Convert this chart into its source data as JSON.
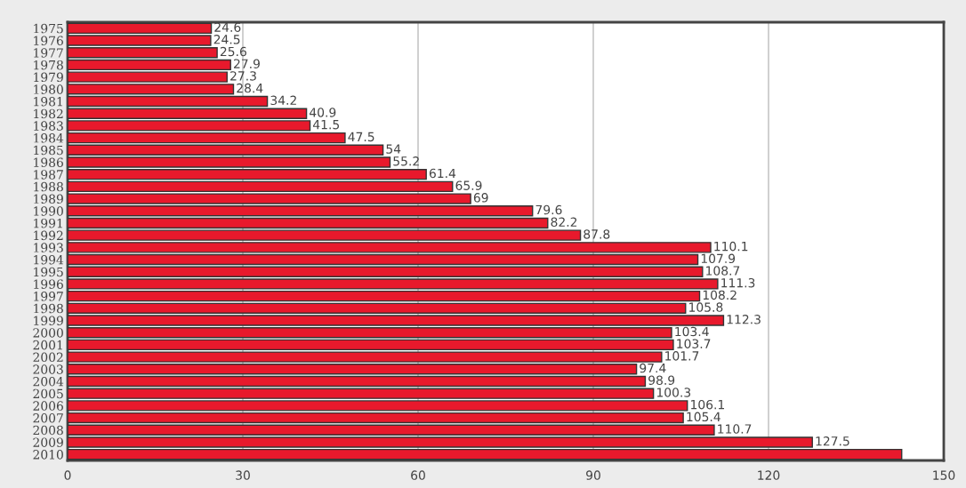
{
  "chart_data": {
    "type": "bar",
    "orientation": "horizontal",
    "categories": [
      "1975",
      "1976",
      "1977",
      "1978",
      "1979",
      "1980",
      "1981",
      "1982",
      "1983",
      "1984",
      "1985",
      "1986",
      "1987",
      "1988",
      "1989",
      "1990",
      "1991",
      "1992",
      "1993",
      "1994",
      "1995",
      "1996",
      "1997",
      "1998",
      "1999",
      "2000",
      "2001",
      "2002",
      "2003",
      "2004",
      "2005",
      "2006",
      "2007",
      "2008",
      "2009",
      "2010"
    ],
    "values": [
      24.6,
      24.5,
      25.6,
      27.9,
      27.3,
      28.4,
      34.2,
      40.9,
      41.5,
      47.5,
      54,
      55.2,
      61.4,
      65.9,
      69,
      79.6,
      82.2,
      87.8,
      110.1,
      107.9,
      108.7,
      111.3,
      108.2,
      105.8,
      112.3,
      103.4,
      103.7,
      101.7,
      97.4,
      98.9,
      100.3,
      106.1,
      105.4,
      110.7,
      127.5,
      142.8
    ],
    "value_labels": [
      "24.6",
      "24.5",
      "25.6",
      "27.9",
      "27.3",
      "28.4",
      "34.2",
      "40.9",
      "41.5",
      "47.5",
      "54",
      "55.2",
      "61.4",
      "65.9",
      "69",
      "79.6",
      "82.2",
      "87.8",
      "110.1",
      "107.9",
      "108.7",
      "111.3",
      "108.2",
      "105.8",
      "112.3",
      "103.4",
      "103.7",
      "101.7",
      "97.4",
      "98.9",
      "100.3",
      "106.1",
      "105.4",
      "110.7",
      "127.5",
      null
    ],
    "color": "#e8192c",
    "xlim": [
      0,
      150
    ],
    "xticks": [
      0,
      30,
      60,
      90,
      120,
      150
    ],
    "grid": "x"
  }
}
